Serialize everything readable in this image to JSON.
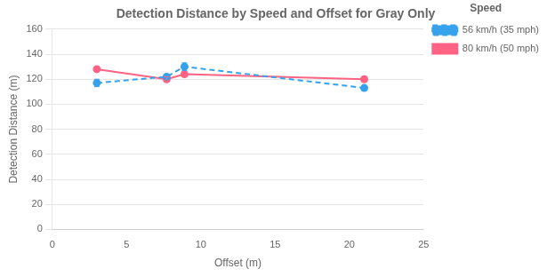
{
  "chart_data": {
    "type": "line",
    "title": "Detection Distance by Speed and Offset for Gray Only",
    "x_label": "Offset (m)",
    "y_label": "Detection Distance (m)",
    "x": [
      3,
      7.7,
      8.9,
      21
    ],
    "series": [
      {
        "name": "56 km/h (35 mph)",
        "values": [
          117,
          122,
          130,
          113
        ],
        "yerr": [
          3,
          2,
          3,
          2
        ],
        "line_style": "dashed",
        "marker": "circle"
      },
      {
        "name": "80 km/h (50 mph)",
        "values": [
          128,
          120,
          124,
          120
        ],
        "yerr": [
          2,
          2,
          2,
          2
        ],
        "line_style": "solid",
        "marker": "circle"
      }
    ],
    "xlim": [
      0,
      25
    ],
    "ylim": [
      0,
      160
    ],
    "xticks": [
      0,
      5,
      10,
      15,
      20,
      25
    ],
    "yticks": [
      0,
      20,
      40,
      60,
      80,
      100,
      120,
      140,
      160
    ],
    "grid": "y",
    "legend": "upper right",
    "legend_title": "Speed"
  }
}
